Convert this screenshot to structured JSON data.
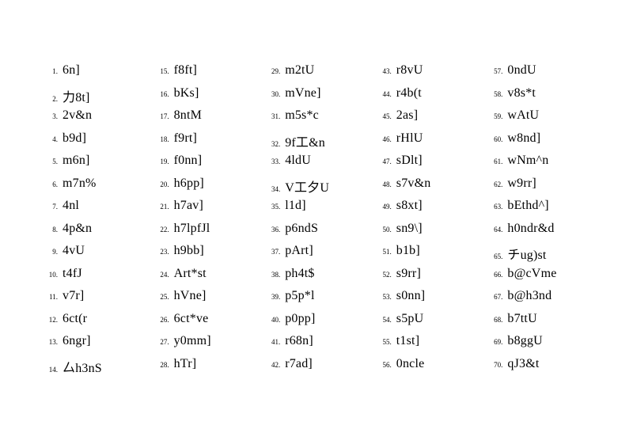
{
  "items": [
    {
      "n": "1.",
      "w": "6n]"
    },
    {
      "n": "2.",
      "w": "力8t]"
    },
    {
      "n": "3.",
      "w": "2v&n"
    },
    {
      "n": "4.",
      "w": "b9d]"
    },
    {
      "n": "5.",
      "w": "m6n]"
    },
    {
      "n": "6.",
      "w": "m7n%"
    },
    {
      "n": "7.",
      "w": "4nl"
    },
    {
      "n": "8.",
      "w": "4p&n"
    },
    {
      "n": "9.",
      "w": "4vU"
    },
    {
      "n": "10.",
      "w": "t4fJ"
    },
    {
      "n": "11.",
      "w": "v7r]"
    },
    {
      "n": "12.",
      "w": "6ct(r"
    },
    {
      "n": "13.",
      "w": "6ngr]"
    },
    {
      "n": "14.",
      "w": "厶h3nS"
    },
    {
      "n": "15.",
      "w": "f8ft]"
    },
    {
      "n": "16.",
      "w": "bKs]"
    },
    {
      "n": "17.",
      "w": "8ntM"
    },
    {
      "n": "18.",
      "w": "f9rt]"
    },
    {
      "n": "19.",
      "w": "f0nn]"
    },
    {
      "n": "20.",
      "w": "h6pp]"
    },
    {
      "n": "21.",
      "w": "h7av]"
    },
    {
      "n": "22.",
      "w": "h7lpfJl"
    },
    {
      "n": "23.",
      "w": "h9bb]"
    },
    {
      "n": "24.",
      "w": "Art*st"
    },
    {
      "n": "25.",
      "w": "hVne]"
    },
    {
      "n": "26.",
      "w": "6ct*ve"
    },
    {
      "n": "27.",
      "w": "y0mm]"
    },
    {
      "n": "28.",
      "w": "hTr]"
    },
    {
      "n": "29.",
      "w": "m2tU"
    },
    {
      "n": "30.",
      "w": "mVne]"
    },
    {
      "n": "31.",
      "w": "m5s*c"
    },
    {
      "n": "32.",
      "w": "9f工&n"
    },
    {
      "n": "33.",
      "w": "4ldU"
    },
    {
      "n": "34.",
      "w": "V工夕U"
    },
    {
      "n": "35.",
      "w": "l1d]"
    },
    {
      "n": "36.",
      "w": "p6ndS"
    },
    {
      "n": "37.",
      "w": "pArt]"
    },
    {
      "n": "38.",
      "w": "ph4t$"
    },
    {
      "n": "39.",
      "w": "p5p*l"
    },
    {
      "n": "40.",
      "w": "p0pp]"
    },
    {
      "n": "41.",
      "w": "r68n]"
    },
    {
      "n": "42.",
      "w": "r7ad]"
    },
    {
      "n": "43.",
      "w": "r8vU"
    },
    {
      "n": "44.",
      "w": "r4b(t"
    },
    {
      "n": "45.",
      "w": "2as]"
    },
    {
      "n": "46.",
      "w": "rHlU"
    },
    {
      "n": "47.",
      "w": "sDlt]"
    },
    {
      "n": "48.",
      "w": "s7v&n"
    },
    {
      "n": "49.",
      "w": "s8xt]"
    },
    {
      "n": "50.",
      "w": "sn9\\]"
    },
    {
      "n": "51.",
      "w": "b1b]"
    },
    {
      "n": "52.",
      "w": "s9rr]"
    },
    {
      "n": "53.",
      "w": "s0nn]"
    },
    {
      "n": "54.",
      "w": "s5pU"
    },
    {
      "n": "55.",
      "w": "t1st]"
    },
    {
      "n": "56.",
      "w": "0ncle"
    },
    {
      "n": "57.",
      "w": "0ndU"
    },
    {
      "n": "58.",
      "w": "v8s*t"
    },
    {
      "n": "59.",
      "w": "wAtU"
    },
    {
      "n": "60.",
      "w": "w8nd]"
    },
    {
      "n": "61.",
      "w": "wNm^n"
    },
    {
      "n": "62.",
      "w": "w9rr]"
    },
    {
      "n": "63.",
      "w": "bEthd^]"
    },
    {
      "n": "64.",
      "w": "h0ndr&d"
    },
    {
      "n": "65.",
      "w": "チug)st"
    },
    {
      "n": "66.",
      "w": "b@cVme"
    },
    {
      "n": "67.",
      "w": "b@h3nd"
    },
    {
      "n": "68.",
      "w": "b7ttU"
    },
    {
      "n": "69.",
      "w": "b8ggU"
    },
    {
      "n": "70.",
      "w": "qJ3&t"
    }
  ],
  "columns": 5,
  "rows": 14
}
